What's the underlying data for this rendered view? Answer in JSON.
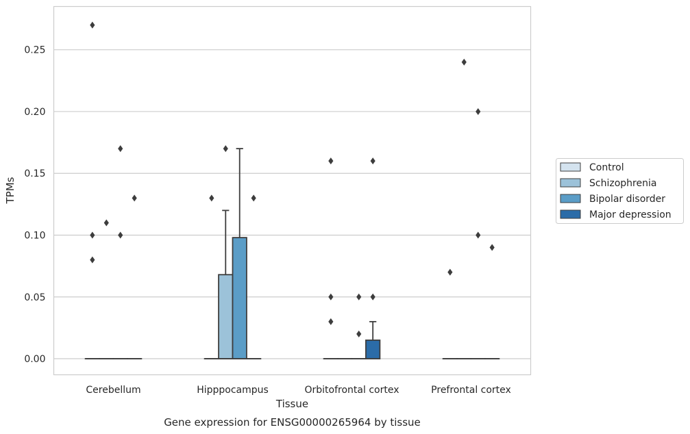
{
  "chart_data": {
    "type": "box",
    "caption": "Gene expression for ENSG00000265964 by tissue",
    "xlabel": "Tissue",
    "ylabel": "TPMs",
    "ylim": [
      -0.013,
      0.285
    ],
    "yticks": [
      0.0,
      0.05,
      0.1,
      0.15,
      0.2,
      0.25
    ],
    "ytick_labels": [
      "0.00",
      "0.05",
      "0.10",
      "0.15",
      "0.20",
      "0.25"
    ],
    "grid": "horizontal",
    "legend_position": "right",
    "categories": [
      "Cerebellum",
      "Hipppocampus",
      "Orbitofrontal cortex",
      "Prefrontal cortex"
    ],
    "series": [
      {
        "name": "Control",
        "color": "#d4e3ef",
        "boxes": [
          {
            "q1": 0,
            "median": 0,
            "q3": 0,
            "whisker_low": 0,
            "whisker_high": 0,
            "outliers": [
              0.1,
              0.08,
              0.27
            ]
          },
          {
            "q1": 0,
            "median": 0,
            "q3": 0,
            "whisker_low": 0,
            "whisker_high": 0,
            "outliers": [
              0.13
            ]
          },
          {
            "q1": 0,
            "median": 0,
            "q3": 0,
            "whisker_low": 0,
            "whisker_high": 0,
            "outliers": [
              0.16,
              0.05,
              0.03
            ]
          },
          {
            "q1": 0,
            "median": 0,
            "q3": 0,
            "whisker_low": 0,
            "whisker_high": 0,
            "outliers": [
              0.07
            ]
          }
        ]
      },
      {
        "name": "Schizophrenia",
        "color": "#9cc2d9",
        "boxes": [
          {
            "q1": 0,
            "median": 0,
            "q3": 0,
            "whisker_low": 0,
            "whisker_high": 0,
            "outliers": [
              0.11
            ]
          },
          {
            "q1": 0,
            "median": 0,
            "q3": 0.068,
            "whisker_low": 0,
            "whisker_high": 0.12,
            "outliers": [
              0.17
            ]
          },
          {
            "q1": 0,
            "median": 0,
            "q3": 0,
            "whisker_low": 0,
            "whisker_high": 0,
            "outliers": []
          },
          {
            "q1": 0,
            "median": 0,
            "q3": 0,
            "whisker_low": 0,
            "whisker_high": 0,
            "outliers": [
              0.24
            ]
          }
        ]
      },
      {
        "name": "Bipolar disorder",
        "color": "#5b9dc7",
        "boxes": [
          {
            "q1": 0,
            "median": 0,
            "q3": 0,
            "whisker_low": 0,
            "whisker_high": 0,
            "outliers": [
              0.1,
              0.17
            ]
          },
          {
            "q1": 0,
            "median": 0,
            "q3": 0.098,
            "whisker_low": 0,
            "whisker_high": 0.17,
            "outliers": []
          },
          {
            "q1": 0,
            "median": 0,
            "q3": 0,
            "whisker_low": 0,
            "whisker_high": 0,
            "outliers": [
              0.05,
              0.02
            ]
          },
          {
            "q1": 0,
            "median": 0,
            "q3": 0,
            "whisker_low": 0,
            "whisker_high": 0,
            "outliers": [
              0.2,
              0.1
            ]
          }
        ]
      },
      {
        "name": "Major depression",
        "color": "#2b6ca8",
        "boxes": [
          {
            "q1": 0,
            "median": 0,
            "q3": 0,
            "whisker_low": 0,
            "whisker_high": 0,
            "outliers": [
              0.13
            ]
          },
          {
            "q1": 0,
            "median": 0,
            "q3": 0,
            "whisker_low": 0,
            "whisker_high": 0,
            "outliers": [
              0.13
            ]
          },
          {
            "q1": 0,
            "median": 0,
            "q3": 0.015,
            "whisker_low": 0,
            "whisker_high": 0.03,
            "outliers": [
              0.16,
              0.05
            ]
          },
          {
            "q1": 0,
            "median": 0,
            "q3": 0,
            "whisker_low": 0,
            "whisker_high": 0,
            "outliers": [
              0.09
            ]
          }
        ]
      }
    ]
  }
}
